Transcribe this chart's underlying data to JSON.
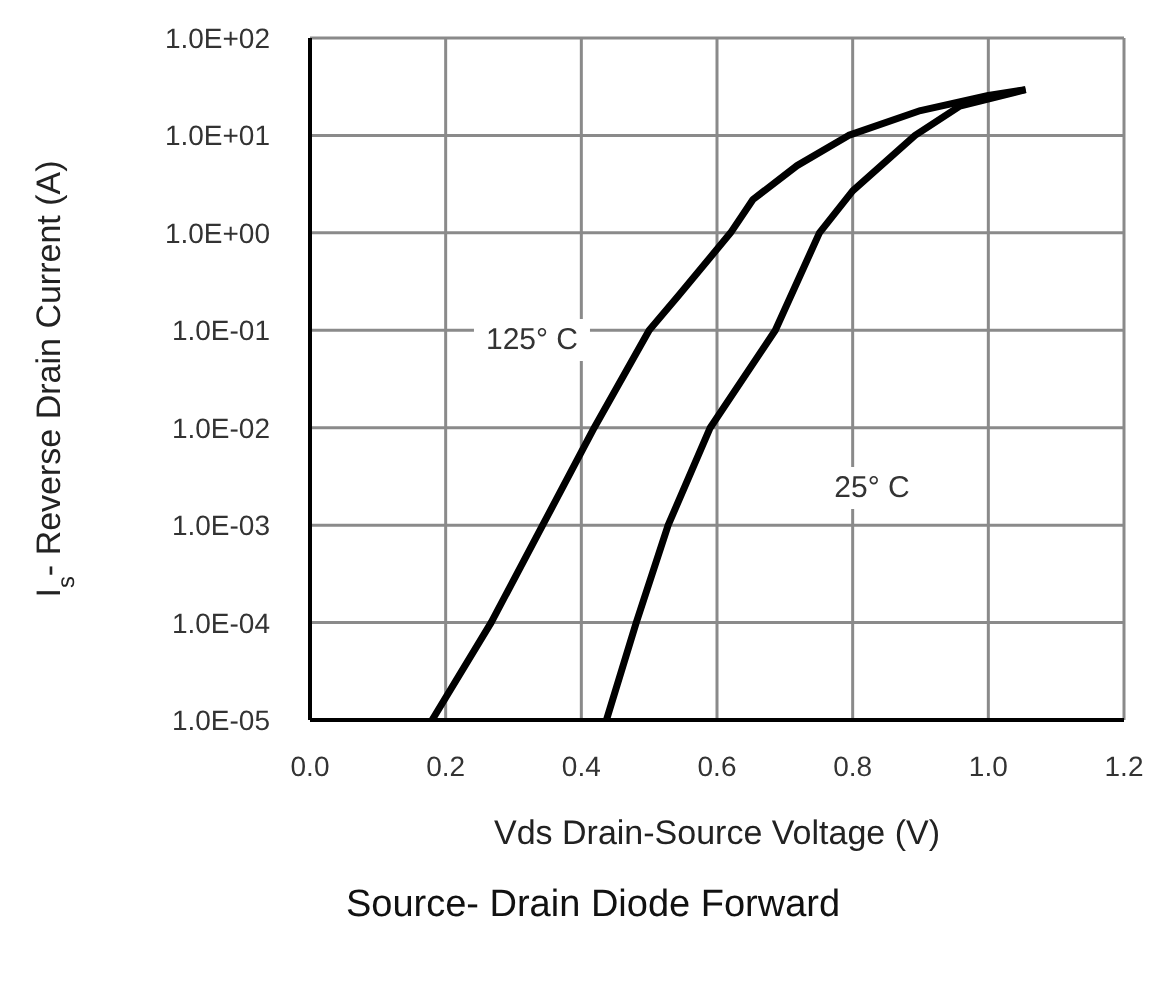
{
  "chart_data": {
    "type": "line",
    "title": "Source- Drain Diode Forward",
    "xlabel": "Vds Drain-Source Voltage (V)",
    "ylabel": "I$_{s}$- Reverse Drain Current (A)",
    "series": [
      {
        "color": "#000000",
        "x": [
          0.18,
          0.267,
          0.343,
          0.419,
          0.5,
          0.544,
          0.62,
          0.653,
          0.718,
          0.794,
          0.9,
          1.0,
          1.055
        ],
        "values": [
          1e-05,
          0.0001,
          0.001,
          0.01,
          0.1,
          0.23,
          1,
          2.2,
          4.9,
          10,
          18,
          25.7,
          29.5
        ]
      },
      {
        "color": "#000000",
        "x": [
          0.437,
          0.481,
          0.528,
          0.59,
          0.686,
          0.751,
          0.8,
          0.892,
          0.958,
          1.055
        ],
        "values": [
          1e-05,
          0.0001,
          0.001,
          0.01,
          0.1,
          1,
          2.7,
          10,
          20,
          29.5
        ]
      }
    ],
    "annotations": [
      "125° C",
      "25° C"
    ],
    "log": "y",
    "grid": true,
    "marker": "none",
    "line_style": "solid",
    "xlim": [
      0,
      1.2
    ],
    "xticks": [
      {
        "value": 0,
        "label": "0.0"
      },
      0.2,
      0.4,
      0.6,
      0.8,
      {
        "value": 1,
        "label": "1.0"
      },
      {
        "value": 1.2,
        "label": "1.2"
      }
    ],
    "ylim": [
      1e-05,
      100
    ],
    "yticks": [
      {
        "value": 1e-05,
        "label": "1.0E-05"
      },
      {
        "value": 0.0001,
        "label": "1.0E-04"
      },
      {
        "value": 0.001,
        "label": "1.0E-03"
      },
      {
        "value": 0.01,
        "label": "1.0E-02"
      },
      {
        "value": 0.1,
        "label": "1.0E-01"
      },
      {
        "value": 1,
        "label": "1.0E+00"
      },
      {
        "value": 10,
        "label": "1.0E+01"
      },
      {
        "value": 100,
        "label": "1.0E+02"
      }
    ]
  }
}
